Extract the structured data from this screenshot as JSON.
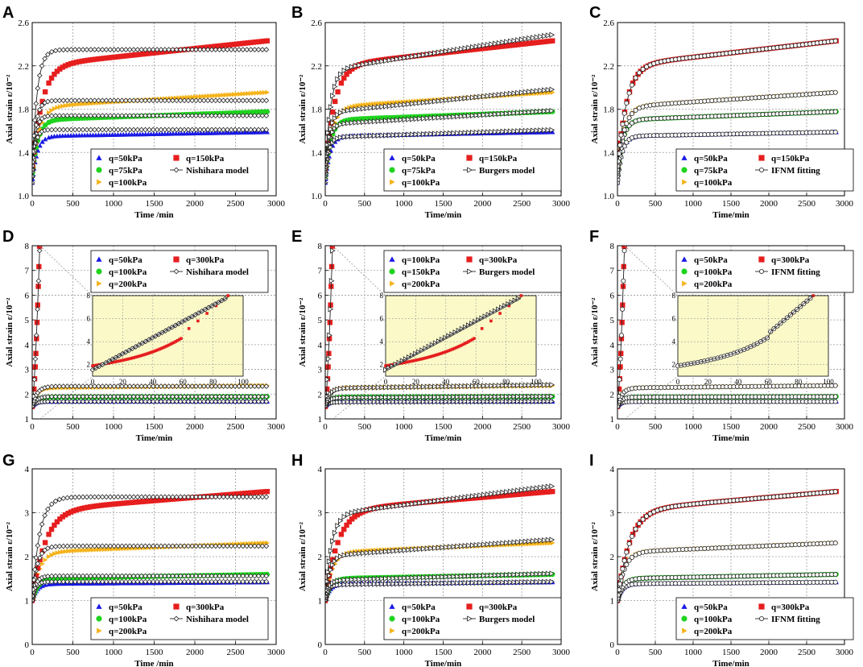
{
  "figure": "Creep curves: measured axial strain vs time with Nishihara, Burgers and IFNM model fits",
  "colors": {
    "q_low": "#1a1ae6",
    "q_mid": "#1fd31f",
    "q_200": "#f5b31a",
    "q_top": "#e61e1e",
    "model": "#222222",
    "inset_bg": "#fbf9c8"
  },
  "chart_data": [
    {
      "panel": "A",
      "type": "scatter",
      "xlabel": "Time /min",
      "ylabel": "Axial strain ε/10⁻²",
      "xlim": [
        0,
        3000
      ],
      "ylim": [
        1.0,
        2.6
      ],
      "xticks": [
        0,
        500,
        1000,
        1500,
        2000,
        2500,
        3000
      ],
      "yticks": [
        1.0,
        1.4,
        1.8,
        2.2,
        2.6
      ],
      "ytick_labels": [
        "1.0",
        "1.4",
        "1.8",
        "2.2",
        "2.6"
      ],
      "model": "Nishihara model",
      "model_marker": "diamond",
      "series": [
        {
          "name": "q=50kPa",
          "q": 50,
          "ei": 1.12,
          "a": 0.43,
          "t": 60,
          "b": 0.04
        },
        {
          "name": "q=75kPa",
          "q": 75,
          "ei": 1.18,
          "a": 0.52,
          "t": 70,
          "b": 0.08
        },
        {
          "name": "q=100kPa",
          "q": 100,
          "ei": 1.22,
          "a": 0.6,
          "t": 90,
          "b": 0.14
        },
        {
          "name": "q=150kPa",
          "q": 150,
          "ei": 1.24,
          "a": 0.96,
          "t": 120,
          "b": 0.24
        }
      ],
      "fits": [
        {
          "ei": 1.12,
          "a": 0.49,
          "t": 35,
          "b": 0
        },
        {
          "ei": 1.18,
          "a": 0.56,
          "t": 40,
          "b": 0
        },
        {
          "ei": 1.22,
          "a": 0.66,
          "t": 45,
          "b": 0
        },
        {
          "ei": 1.24,
          "a": 1.11,
          "t": 60,
          "b": 0
        }
      ],
      "legend": {
        "entries": [
          "q=50kPa",
          "q=150kPa",
          "q=75kPa",
          "Nishihara model",
          "q=100kPa"
        ]
      }
    },
    {
      "panel": "B",
      "type": "scatter",
      "xlabel": "Time/min",
      "ylabel": "Axial strain ε/10⁻²",
      "xlim": [
        0,
        3000
      ],
      "ylim": [
        1.0,
        2.6
      ],
      "xticks": [
        0,
        500,
        1000,
        1500,
        2000,
        2500,
        3000
      ],
      "yticks": [
        1.0,
        1.4,
        1.8,
        2.2,
        2.6
      ],
      "ytick_labels": [
        "1.0",
        "1.4",
        "1.8",
        "2.2",
        "2.6"
      ],
      "model": "Burgers model",
      "model_marker": "triangle-right",
      "series": [
        {
          "name": "q=50kPa",
          "q": 50,
          "ei": 1.12,
          "a": 0.43,
          "t": 60,
          "b": 0.04
        },
        {
          "name": "q=75kPa",
          "q": 75,
          "ei": 1.18,
          "a": 0.52,
          "t": 70,
          "b": 0.08
        },
        {
          "name": "q=100kPa",
          "q": 100,
          "ei": 1.22,
          "a": 0.6,
          "t": 90,
          "b": 0.14
        },
        {
          "name": "q=150kPa",
          "q": 150,
          "ei": 1.24,
          "a": 0.96,
          "t": 120,
          "b": 0.24
        }
      ],
      "fits": [
        {
          "ei": 1.12,
          "a": 0.42,
          "t": 45,
          "b": 0.07
        },
        {
          "ei": 1.18,
          "a": 0.48,
          "t": 50,
          "b": 0.13
        },
        {
          "ei": 1.22,
          "a": 0.55,
          "t": 55,
          "b": 0.22
        },
        {
          "ei": 1.24,
          "a": 0.92,
          "t": 70,
          "b": 0.34
        }
      ],
      "legend": {
        "entries": [
          "q=50kPa",
          "q=150kPa",
          "q=75kPa",
          "Burgers model",
          "q=100kPa"
        ]
      }
    },
    {
      "panel": "C",
      "type": "scatter",
      "xlabel": "Time/min",
      "ylabel": "Axial strain ε/10⁻²",
      "xlim": [
        0,
        3000
      ],
      "ylim": [
        1.0,
        2.6
      ],
      "xticks": [
        0,
        500,
        1000,
        1500,
        2000,
        2500,
        3000
      ],
      "yticks": [
        1.0,
        1.4,
        1.8,
        2.2,
        2.6
      ],
      "ytick_labels": [
        "1.0",
        "1.4",
        "1.8",
        "2.2",
        "2.6"
      ],
      "model": "IFNM fitting",
      "model_marker": "circle",
      "series": [
        {
          "name": "q=50kPa",
          "q": 50,
          "ei": 1.12,
          "a": 0.43,
          "t": 60,
          "b": 0.04
        },
        {
          "name": "q=75kPa",
          "q": 75,
          "ei": 1.18,
          "a": 0.52,
          "t": 70,
          "b": 0.08
        },
        {
          "name": "q=100kPa",
          "q": 100,
          "ei": 1.22,
          "a": 0.6,
          "t": 90,
          "b": 0.14
        },
        {
          "name": "q=150kPa",
          "q": 150,
          "ei": 1.24,
          "a": 0.96,
          "t": 120,
          "b": 0.24
        }
      ],
      "fits": [
        {
          "ei": 1.12,
          "a": 0.43,
          "t": 60,
          "b": 0.04
        },
        {
          "ei": 1.18,
          "a": 0.52,
          "t": 70,
          "b": 0.08
        },
        {
          "ei": 1.22,
          "a": 0.6,
          "t": 90,
          "b": 0.14
        },
        {
          "ei": 1.24,
          "a": 0.96,
          "t": 120,
          "b": 0.24
        }
      ],
      "legend": {
        "entries": [
          "q=50kPa",
          "q=150kPa",
          "q=75kPa",
          "IFNM fitting",
          "q=100kPa"
        ]
      }
    },
    {
      "panel": "D",
      "type": "scatter",
      "xlabel": "Time/min",
      "ylabel": "Axial strain ε/10⁻²",
      "xlim": [
        0,
        3000
      ],
      "ylim": [
        1,
        8
      ],
      "xticks": [
        0,
        500,
        1000,
        1500,
        2000,
        2500,
        3000
      ],
      "yticks": [
        1,
        2,
        3,
        4,
        5,
        6,
        7,
        8
      ],
      "ytick_labels": [
        "1",
        "2",
        "3",
        "4",
        "5",
        "6",
        "7",
        "8"
      ],
      "model": "Nishihara model",
      "model_marker": "diamond",
      "series": [
        {
          "name": "q=50kPa",
          "q": 50,
          "ei": 1.5,
          "a": 0.2,
          "t": 40,
          "b": 0
        },
        {
          "name": "q=100kPa",
          "q": 100,
          "ei": 1.5,
          "a": 0.38,
          "t": 50,
          "b": 0.02
        },
        {
          "name": "q=200kPa",
          "q": 200,
          "ei": 1.5,
          "a": 0.75,
          "t": 60,
          "b": 0.1
        },
        {
          "name": "q=300kPa",
          "q": 300,
          "ei": 1.5,
          "a": 0,
          "t": 1,
          "b": 0,
          "failure": true
        }
      ],
      "fits": [
        {
          "ei": 1.5,
          "a": 0.2,
          "t": 40,
          "b": 0
        },
        {
          "ei": 1.5,
          "a": 0.4,
          "t": 50,
          "b": 0
        },
        {
          "ei": 1.5,
          "a": 0.82,
          "t": 60,
          "b": 0
        },
        {
          "ei": 1.5,
          "a": 0,
          "t": 1,
          "b": 0,
          "failure": true
        }
      ],
      "inset": {
        "xlim": [
          0,
          100
        ],
        "ylim": [
          1,
          8
        ],
        "xticks": [
          0,
          20,
          40,
          60,
          80,
          100
        ],
        "yticks": [
          2,
          4,
          6,
          8
        ],
        "fit_type": "linear"
      },
      "legend": {
        "entries": [
          "q=50kPa",
          "q=300kPa",
          "q=100kPa",
          "Nishihara model",
          "q=200kPa"
        ]
      }
    },
    {
      "panel": "E",
      "type": "scatter",
      "xlabel": "Time/min",
      "ylabel": "Axial strain ε/10⁻²",
      "xlim": [
        0,
        3000
      ],
      "ylim": [
        1,
        8
      ],
      "xticks": [
        0,
        500,
        1000,
        1500,
        2000,
        2500,
        3000
      ],
      "yticks": [
        1,
        2,
        3,
        4,
        5,
        6,
        7,
        8
      ],
      "ytick_labels": [
        "1",
        "2",
        "3",
        "4",
        "5",
        "6",
        "7",
        "8"
      ],
      "model": "Burgers model",
      "model_marker": "triangle-right",
      "series": [
        {
          "name": "q=100kPa",
          "q": 100,
          "ei": 1.5,
          "a": 0.2,
          "t": 40,
          "b": 0
        },
        {
          "name": "q=150kPa",
          "q": 150,
          "ei": 1.5,
          "a": 0.38,
          "t": 50,
          "b": 0.02
        },
        {
          "name": "q=200kPa",
          "q": 200,
          "ei": 1.5,
          "a": 0.75,
          "t": 60,
          "b": 0.1
        },
        {
          "name": "q=300kPa",
          "q": 300,
          "ei": 1.5,
          "a": 0,
          "t": 1,
          "b": 0,
          "failure": true
        }
      ],
      "fits": [
        {
          "ei": 1.5,
          "a": 0.18,
          "t": 40,
          "b": 0.03
        },
        {
          "ei": 1.5,
          "a": 0.36,
          "t": 50,
          "b": 0.05
        },
        {
          "ei": 1.5,
          "a": 0.74,
          "t": 60,
          "b": 0.14
        },
        {
          "ei": 1.5,
          "a": 0,
          "t": 1,
          "b": 0,
          "failure": true
        }
      ],
      "inset": {
        "xlim": [
          0,
          100
        ],
        "ylim": [
          1,
          8
        ],
        "xticks": [
          0,
          20,
          40,
          60,
          80,
          100
        ],
        "yticks": [
          2,
          4,
          6,
          8
        ],
        "fit_type": "linear"
      },
      "legend": {
        "entries": [
          "q=100kPa",
          "q=300kPa",
          "q=150kPa",
          "Burgers model",
          "q=200kPa"
        ]
      }
    },
    {
      "panel": "F",
      "type": "scatter",
      "xlabel": "Time/min",
      "ylabel": "Axial strain ε/10⁻²",
      "xlim": [
        0,
        3000
      ],
      "ylim": [
        1,
        8
      ],
      "xticks": [
        0,
        500,
        1000,
        1500,
        2000,
        2500,
        3000
      ],
      "yticks": [
        1,
        2,
        3,
        4,
        5,
        6,
        7,
        8
      ],
      "ytick_labels": [
        "1",
        "2",
        "3",
        "4",
        "5",
        "6",
        "7",
        "8"
      ],
      "model": "IFNM fitting",
      "model_marker": "circle",
      "series": [
        {
          "name": "q=50kPa",
          "q": 50,
          "ei": 1.5,
          "a": 0.2,
          "t": 40,
          "b": 0
        },
        {
          "name": "q=100kPa",
          "q": 100,
          "ei": 1.5,
          "a": 0.38,
          "t": 50,
          "b": 0.02
        },
        {
          "name": "q=200kPa",
          "q": 200,
          "ei": 1.5,
          "a": 0.75,
          "t": 60,
          "b": 0.1
        },
        {
          "name": "q=300kPa",
          "q": 300,
          "ei": 1.5,
          "a": 0,
          "t": 1,
          "b": 0,
          "failure": true
        }
      ],
      "fits": [
        {
          "ei": 1.5,
          "a": 0.2,
          "t": 40,
          "b": 0
        },
        {
          "ei": 1.5,
          "a": 0.38,
          "t": 50,
          "b": 0.02
        },
        {
          "ei": 1.5,
          "a": 0.75,
          "t": 60,
          "b": 0.1
        },
        {
          "ei": 1.5,
          "a": 0,
          "t": 1,
          "b": 0,
          "failure": true
        }
      ],
      "inset": {
        "xlim": [
          0,
          100
        ],
        "ylim": [
          1,
          8
        ],
        "xticks": [
          0,
          20,
          40,
          60,
          80,
          100
        ],
        "yticks": [
          2,
          4,
          6,
          8
        ],
        "fit_type": "accel"
      },
      "legend": {
        "entries": [
          "q=50kPa",
          "q=300kPa",
          "q=100kPa",
          "IFNM fitting",
          "q=200kPa"
        ]
      }
    },
    {
      "panel": "G",
      "type": "scatter",
      "xlabel": "Time /min",
      "ylabel": "Axial strain ε/10⁻²",
      "xlim": [
        0,
        3000
      ],
      "ylim": [
        0,
        4
      ],
      "xticks": [
        0,
        500,
        1000,
        1500,
        2000,
        2500,
        3000
      ],
      "yticks": [
        0,
        1,
        2,
        3,
        4
      ],
      "ytick_labels": [
        "0",
        "1",
        "2",
        "3",
        "4"
      ],
      "model": "Nishihara model",
      "model_marker": "diamond",
      "series": [
        {
          "name": "q=50kPa",
          "q": 50,
          "ei": 1.0,
          "a": 0.38,
          "t": 60,
          "b": 0.04
        },
        {
          "name": "q=100kPa",
          "q": 100,
          "ei": 1.0,
          "a": 0.5,
          "t": 70,
          "b": 0.1
        },
        {
          "name": "q=200kPa",
          "q": 200,
          "ei": 1.0,
          "a": 1.1,
          "t": 90,
          "b": 0.22
        },
        {
          "name": "q=300kPa",
          "q": 300,
          "ei": 1.0,
          "a": 2.05,
          "t": 160,
          "b": 0.45
        }
      ],
      "fits": [
        {
          "ei": 1.0,
          "a": 0.43,
          "t": 40,
          "b": 0
        },
        {
          "ei": 1.0,
          "a": 0.56,
          "t": 45,
          "b": 0
        },
        {
          "ei": 1.0,
          "a": 1.24,
          "t": 60,
          "b": 0
        },
        {
          "ei": 1.0,
          "a": 2.36,
          "t": 90,
          "b": 0
        }
      ],
      "legend": {
        "entries": [
          "q=50kPa",
          "q=300kPa",
          "q=100kPa",
          "Nishihara model",
          "q=200kPa"
        ]
      }
    },
    {
      "panel": "H",
      "type": "scatter",
      "xlabel": "Time/min",
      "ylabel": "Axial strain ε/10⁻²",
      "xlim": [
        0,
        3000
      ],
      "ylim": [
        0,
        4
      ],
      "xticks": [
        0,
        500,
        1000,
        1500,
        2000,
        2500,
        3000
      ],
      "yticks": [
        0,
        1,
        2,
        3,
        4
      ],
      "ytick_labels": [
        "0",
        "1",
        "2",
        "3",
        "4"
      ],
      "model": "Burgers model",
      "model_marker": "triangle-right",
      "series": [
        {
          "name": "q=50kPa",
          "q": 50,
          "ei": 1.0,
          "a": 0.38,
          "t": 60,
          "b": 0.04
        },
        {
          "name": "q=100kPa",
          "q": 100,
          "ei": 1.0,
          "a": 0.5,
          "t": 70,
          "b": 0.1
        },
        {
          "name": "q=200kPa",
          "q": 200,
          "ei": 1.0,
          "a": 1.1,
          "t": 90,
          "b": 0.22
        },
        {
          "name": "q=300kPa",
          "q": 300,
          "ei": 1.0,
          "a": 2.05,
          "t": 160,
          "b": 0.45
        }
      ],
      "fits": [
        {
          "ei": 1.0,
          "a": 0.36,
          "t": 45,
          "b": 0.07
        },
        {
          "ei": 1.0,
          "a": 0.46,
          "t": 50,
          "b": 0.16
        },
        {
          "ei": 1.0,
          "a": 1.02,
          "t": 60,
          "b": 0.38
        },
        {
          "ei": 1.0,
          "a": 1.95,
          "t": 80,
          "b": 0.68
        }
      ],
      "legend": {
        "entries": [
          "q=50kPa",
          "q=300kPa",
          "q=100kPa",
          "Burgers model",
          "q=200kPa"
        ]
      }
    },
    {
      "panel": "I",
      "type": "scatter",
      "xlabel": "Time/min",
      "ylabel": "Axial strain ε/10⁻²",
      "xlim": [
        0,
        3000
      ],
      "ylim": [
        0,
        4
      ],
      "xticks": [
        0,
        500,
        1000,
        1500,
        2000,
        2500,
        3000
      ],
      "yticks": [
        0,
        1,
        2,
        3,
        4
      ],
      "ytick_labels": [
        "0",
        "1",
        "2",
        "3",
        "4"
      ],
      "model": "IFNM fitting",
      "model_marker": "circle",
      "series": [
        {
          "name": "q=50kPa",
          "q": 50,
          "ei": 1.0,
          "a": 0.38,
          "t": 60,
          "b": 0.04
        },
        {
          "name": "q=100kPa",
          "q": 100,
          "ei": 1.0,
          "a": 0.5,
          "t": 70,
          "b": 0.1
        },
        {
          "name": "q=200kPa",
          "q": 200,
          "ei": 1.0,
          "a": 1.1,
          "t": 90,
          "b": 0.22
        },
        {
          "name": "q=300kPa",
          "q": 300,
          "ei": 1.0,
          "a": 2.05,
          "t": 160,
          "b": 0.45
        }
      ],
      "fits": [
        {
          "ei": 1.0,
          "a": 0.38,
          "t": 60,
          "b": 0.04
        },
        {
          "ei": 1.0,
          "a": 0.5,
          "t": 70,
          "b": 0.1
        },
        {
          "ei": 1.0,
          "a": 1.1,
          "t": 90,
          "b": 0.22
        },
        {
          "ei": 1.0,
          "a": 2.05,
          "t": 160,
          "b": 0.45
        }
      ],
      "legend": {
        "entries": [
          "q=50kPa",
          "q=300kPa",
          "q=100kPa",
          "IFNM fitting",
          "q=200kPa"
        ]
      }
    }
  ]
}
